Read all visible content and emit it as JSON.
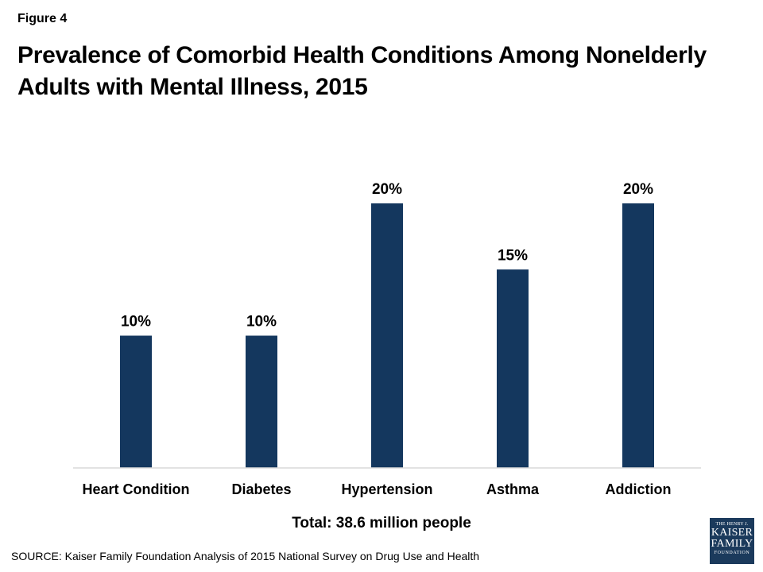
{
  "figure_label": "Figure 4",
  "footer": {
    "total": "Total: 38.6 million people",
    "source": "SOURCE: Kaiser Family Foundation Analysis of 2015 National Survey on Drug Use and Health"
  },
  "logo": {
    "line1": "THE HENRY J.",
    "line2": "KAISER",
    "line3": "FAMILY",
    "line4": "FOUNDATION"
  },
  "chart_data": {
    "type": "bar",
    "title": "Prevalence of Comorbid Health Conditions Among Nonelderly Adults with Mental Illness, 2015",
    "categories": [
      "Heart Condition",
      "Diabetes",
      "Hypertension",
      "Asthma",
      "Addiction"
    ],
    "values": [
      10,
      10,
      20,
      15,
      20
    ],
    "value_labels": [
      "10%",
      "10%",
      "20%",
      "15%",
      "20%"
    ],
    "ylim": [
      0,
      20
    ],
    "grid": false,
    "legend": "none",
    "bar_color": "#14375e"
  }
}
